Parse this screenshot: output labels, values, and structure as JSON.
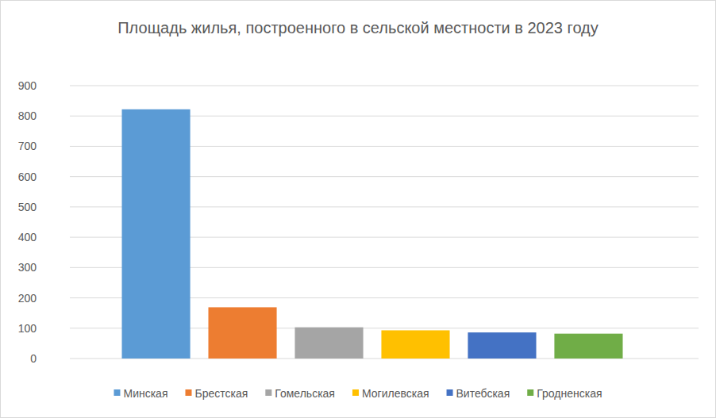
{
  "chart_data": {
    "type": "bar",
    "title": "Площадь жилья, построенного в сельской местности в 2023 году",
    "categories": [
      "Минская",
      "Брестская",
      "Гомельская",
      "Могилевская",
      "Витебская",
      "Гродненская"
    ],
    "values": [
      822,
      169,
      103,
      93,
      86,
      82
    ],
    "colors": [
      "#5b9bd5",
      "#ed7d31",
      "#a5a5a5",
      "#ffc000",
      "#4472c4",
      "#70ad47"
    ],
    "ylim": [
      0,
      900
    ],
    "yticks": [
      0,
      100,
      200,
      300,
      400,
      500,
      600,
      700,
      800,
      900
    ],
    "grid": true,
    "legend": "bottom",
    "tick_labels": "y"
  }
}
